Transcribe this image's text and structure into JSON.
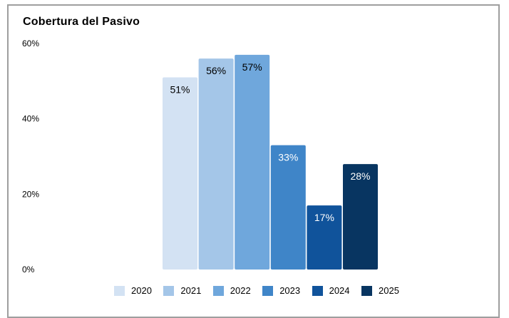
{
  "chart_data": {
    "type": "bar",
    "title": "Cobertura del Pasivo",
    "categories": [
      "2020",
      "2021",
      "2022",
      "2023",
      "2024",
      "2025"
    ],
    "values": [
      51,
      56,
      57,
      33,
      17,
      28
    ],
    "value_labels": [
      "51%",
      "56%",
      "57%",
      "33%",
      "17%",
      "28%"
    ],
    "colors": [
      "#d3e2f3",
      "#a4c6e8",
      "#6fa7dc",
      "#3f85c8",
      "#10539b",
      "#083561"
    ],
    "label_colors": [
      "#000000",
      "#000000",
      "#000000",
      "#ffffff",
      "#ffffff",
      "#ffffff"
    ],
    "ylim": [
      0,
      60
    ],
    "yticks": [
      0,
      20,
      40,
      60
    ],
    "ytick_labels": [
      "0%",
      "20%",
      "40%",
      "60%"
    ],
    "grid": false,
    "legend_position": "bottom"
  }
}
